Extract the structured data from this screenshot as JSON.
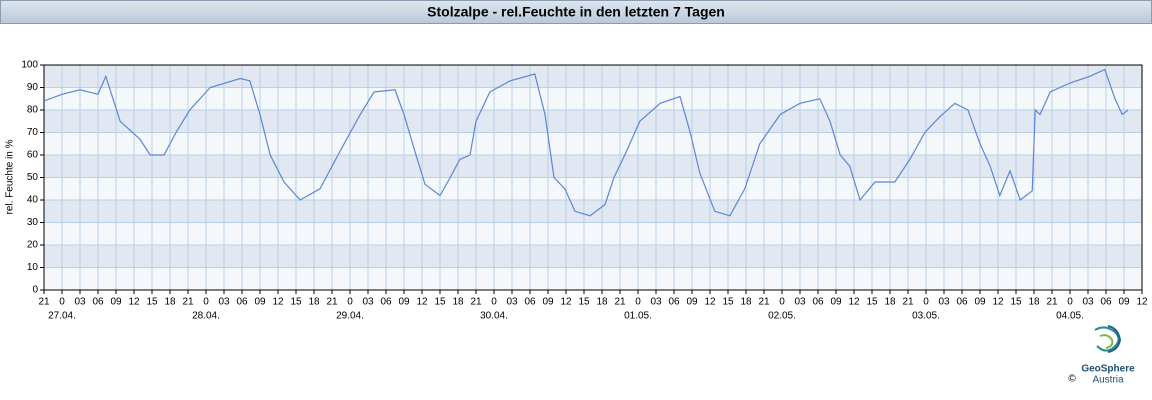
{
  "chart_data": {
    "type": "line",
    "title": "Stolzalpe - rel.Feuchte in den letzten 7 Tagen",
    "y_label": "rel. Feuchte in %",
    "x": [
      0,
      3,
      6,
      9,
      10.3,
      12.7,
      16,
      17.7,
      20,
      22,
      24.3,
      27.7,
      32.7,
      34.3,
      36,
      37.7,
      40,
      42.7,
      46,
      49,
      52.7,
      55,
      58.5,
      60,
      62,
      63.5,
      66,
      67.7,
      69.3,
      71,
      72,
      74.3,
      77.7,
      81.8,
      83.5,
      85,
      86.8,
      88.5,
      91,
      93.5,
      95,
      96.8,
      99.3,
      102.7,
      106,
      107.7,
      109.3,
      111.8,
      114.3,
      116.8,
      119.3,
      122.7,
      126,
      129.3,
      131,
      132.7,
      134.3,
      136,
      138.5,
      141.8,
      144.3,
      146.8,
      149.3,
      151.8,
      154,
      156,
      157.7,
      159.3,
      161,
      162.7,
      164.7,
      165.2,
      166,
      167.7,
      171,
      174.3,
      176.8,
      178.5,
      179.7,
      180.7
    ],
    "values": [
      84,
      87,
      89,
      87,
      95,
      75,
      67,
      60,
      60,
      70,
      80,
      90,
      94,
      93,
      78,
      60,
      48,
      40,
      45,
      60,
      78,
      88,
      89,
      78,
      60,
      47,
      42,
      50,
      58,
      60,
      75,
      88,
      93,
      96,
      78,
      50,
      45,
      35,
      33,
      38,
      50,
      60,
      75,
      83,
      86,
      70,
      52,
      35,
      33,
      45,
      65,
      78,
      83,
      85,
      75,
      60,
      55,
      40,
      48,
      48,
      58,
      70,
      77,
      83,
      80,
      65,
      55,
      42,
      53,
      40,
      44,
      80,
      78,
      88,
      92,
      95,
      98,
      85,
      78,
      80
    ],
    "color": "#5b86d8",
    "xlim": [
      0,
      183
    ],
    "xticks": [
      {
        "value": 0,
        "label": "21"
      },
      {
        "value": 3,
        "label": "0"
      },
      {
        "value": 6,
        "label": "03"
      },
      {
        "value": 9,
        "label": "06"
      },
      {
        "value": 12,
        "label": "09"
      },
      {
        "value": 15,
        "label": "12"
      },
      {
        "value": 18,
        "label": "15"
      },
      {
        "value": 21,
        "label": "18"
      },
      {
        "value": 24,
        "label": "21"
      },
      {
        "value": 27,
        "label": "0"
      },
      {
        "value": 30,
        "label": "03"
      },
      {
        "value": 33,
        "label": "06"
      },
      {
        "value": 36,
        "label": "09"
      },
      {
        "value": 39,
        "label": "12"
      },
      {
        "value": 42,
        "label": "15"
      },
      {
        "value": 45,
        "label": "18"
      },
      {
        "value": 48,
        "label": "21"
      },
      {
        "value": 51,
        "label": "0"
      },
      {
        "value": 54,
        "label": "03"
      },
      {
        "value": 57,
        "label": "06"
      },
      {
        "value": 60,
        "label": "09"
      },
      {
        "value": 63,
        "label": "12"
      },
      {
        "value": 66,
        "label": "15"
      },
      {
        "value": 69,
        "label": "18"
      },
      {
        "value": 72,
        "label": "21"
      },
      {
        "value": 75,
        "label": "0"
      },
      {
        "value": 78,
        "label": "03"
      },
      {
        "value": 81,
        "label": "06"
      },
      {
        "value": 84,
        "label": "09"
      },
      {
        "value": 87,
        "label": "12"
      },
      {
        "value": 90,
        "label": "15"
      },
      {
        "value": 93,
        "label": "18"
      },
      {
        "value": 96,
        "label": "21"
      },
      {
        "value": 99,
        "label": "0"
      },
      {
        "value": 102,
        "label": "03"
      },
      {
        "value": 105,
        "label": "06"
      },
      {
        "value": 108,
        "label": "09"
      },
      {
        "value": 111,
        "label": "12"
      },
      {
        "value": 114,
        "label": "15"
      },
      {
        "value": 117,
        "label": "18"
      },
      {
        "value": 120,
        "label": "21"
      },
      {
        "value": 123,
        "label": "0"
      },
      {
        "value": 126,
        "label": "03"
      },
      {
        "value": 129,
        "label": "06"
      },
      {
        "value": 132,
        "label": "09"
      },
      {
        "value": 135,
        "label": "12"
      },
      {
        "value": 138,
        "label": "15"
      },
      {
        "value": 141,
        "label": "18"
      },
      {
        "value": 144,
        "label": "21"
      },
      {
        "value": 147,
        "label": "0"
      },
      {
        "value": 150,
        "label": "03"
      },
      {
        "value": 153,
        "label": "06"
      },
      {
        "value": 156,
        "label": "09"
      },
      {
        "value": 159,
        "label": "12"
      },
      {
        "value": 162,
        "label": "15"
      },
      {
        "value": 165,
        "label": "18"
      },
      {
        "value": 168,
        "label": "21"
      },
      {
        "value": 171,
        "label": "0"
      },
      {
        "value": 174,
        "label": "03"
      },
      {
        "value": 177,
        "label": "06"
      },
      {
        "value": 180,
        "label": "09"
      },
      {
        "value": 183,
        "label": "12"
      }
    ],
    "date_labels": [
      {
        "value": 3,
        "label": "27.04."
      },
      {
        "value": 27,
        "label": "28.04."
      },
      {
        "value": 51,
        "label": "29.04."
      },
      {
        "value": 75,
        "label": "30.04."
      },
      {
        "value": 99,
        "label": "01.05."
      },
      {
        "value": 123,
        "label": "02.05."
      },
      {
        "value": 147,
        "label": "03.05."
      },
      {
        "value": 171,
        "label": "04.05."
      }
    ],
    "ylim": [
      0,
      100
    ],
    "yticks": [
      0,
      10,
      20,
      30,
      40,
      50,
      60,
      70,
      80,
      90,
      100
    ],
    "grid": true,
    "bands": true
  },
  "logo": {
    "line1": "GeoSphere",
    "line2": "Austria",
    "copyright": "©"
  }
}
